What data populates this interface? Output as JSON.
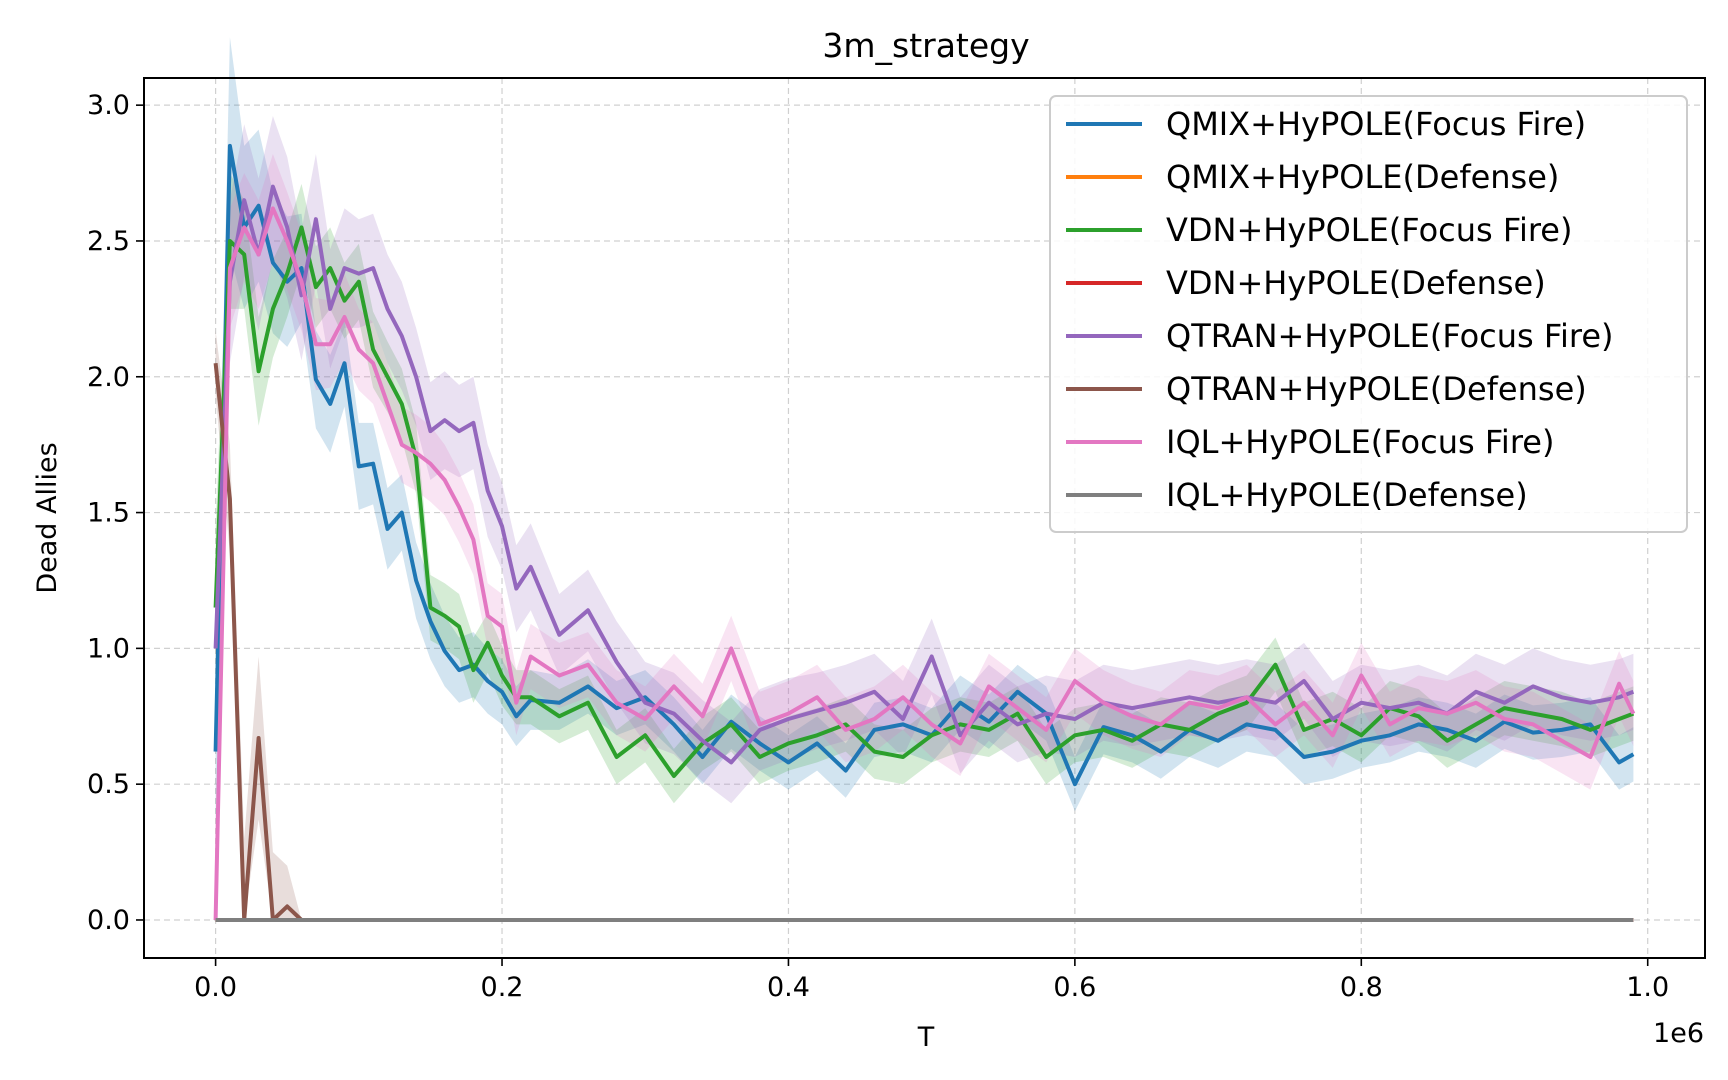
{
  "chart_data": {
    "type": "line",
    "title": "3m_strategy",
    "xlabel": "T",
    "ylabel": "Dead Allies",
    "x_offset_label": "1e6",
    "xlim": [
      -0.05,
      1.04
    ],
    "ylim": [
      -0.14,
      3.1
    ],
    "x_ticks": [
      0.0,
      0.2,
      0.4,
      0.6,
      0.8,
      1.0
    ],
    "x_tick_labels": [
      "0.0",
      "0.2",
      "0.4",
      "0.6",
      "0.8",
      "1.0"
    ],
    "y_ticks": [
      0.0,
      0.5,
      1.0,
      1.5,
      2.0,
      2.5,
      3.0
    ],
    "y_tick_labels": [
      "0.0",
      "0.5",
      "1.0",
      "1.5",
      "2.0",
      "2.5",
      "3.0"
    ],
    "grid": true,
    "legend_position": "top-right",
    "series": [
      {
        "name": "QMIX+HyPOLE(Focus Fire)",
        "color": "#1f77b4",
        "x": [
          0.0,
          0.01,
          0.02,
          0.03,
          0.04,
          0.05,
          0.06,
          0.07,
          0.08,
          0.09,
          0.1,
          0.11,
          0.12,
          0.13,
          0.14,
          0.15,
          0.16,
          0.17,
          0.18,
          0.19,
          0.2,
          0.21,
          0.22,
          0.24,
          0.26,
          0.28,
          0.3,
          0.32,
          0.34,
          0.36,
          0.38,
          0.4,
          0.42,
          0.44,
          0.46,
          0.48,
          0.5,
          0.52,
          0.54,
          0.56,
          0.58,
          0.6,
          0.62,
          0.64,
          0.66,
          0.68,
          0.7,
          0.72,
          0.74,
          0.76,
          0.78,
          0.8,
          0.82,
          0.84,
          0.86,
          0.88,
          0.9,
          0.92,
          0.94,
          0.96,
          0.98,
          0.99
        ],
        "y": [
          0.62,
          2.85,
          2.55,
          2.63,
          2.42,
          2.35,
          2.4,
          1.99,
          1.9,
          2.05,
          1.67,
          1.68,
          1.44,
          1.5,
          1.25,
          1.1,
          0.99,
          0.92,
          0.94,
          0.88,
          0.84,
          0.75,
          0.81,
          0.8,
          0.86,
          0.78,
          0.82,
          0.72,
          0.6,
          0.73,
          0.65,
          0.58,
          0.65,
          0.55,
          0.7,
          0.72,
          0.68,
          0.8,
          0.73,
          0.84,
          0.76,
          0.5,
          0.71,
          0.68,
          0.62,
          0.7,
          0.66,
          0.72,
          0.7,
          0.6,
          0.62,
          0.66,
          0.68,
          0.72,
          0.7,
          0.66,
          0.73,
          0.69,
          0.7,
          0.72,
          0.58,
          0.61
        ],
        "band": [
          0.28,
          0.4,
          0.3,
          0.28,
          0.26,
          0.24,
          0.2,
          0.18,
          0.18,
          0.16,
          0.16,
          0.15,
          0.15,
          0.14,
          0.14,
          0.14,
          0.13,
          0.12,
          0.12,
          0.12,
          0.12,
          0.11,
          0.11,
          0.1,
          0.1,
          0.1,
          0.1,
          0.1,
          0.1,
          0.1,
          0.1,
          0.1,
          0.1,
          0.1,
          0.1,
          0.1,
          0.1,
          0.1,
          0.1,
          0.1,
          0.1,
          0.1,
          0.1,
          0.1,
          0.1,
          0.1,
          0.1,
          0.1,
          0.1,
          0.1,
          0.1,
          0.1,
          0.1,
          0.1,
          0.1,
          0.1,
          0.1,
          0.1,
          0.1,
          0.1,
          0.1,
          0.1
        ]
      },
      {
        "name": "QMIX+HyPOLE(Defense)",
        "color": "#ff7f0e",
        "x": [
          0.0,
          0.99
        ],
        "y": [
          0.0,
          0.0
        ]
      },
      {
        "name": "VDN+HyPOLE(Focus Fire)",
        "color": "#2ca02c",
        "x": [
          0.0,
          0.01,
          0.02,
          0.03,
          0.04,
          0.05,
          0.06,
          0.07,
          0.08,
          0.09,
          0.1,
          0.11,
          0.12,
          0.13,
          0.14,
          0.15,
          0.16,
          0.17,
          0.18,
          0.19,
          0.2,
          0.21,
          0.22,
          0.24,
          0.26,
          0.28,
          0.3,
          0.32,
          0.34,
          0.36,
          0.38,
          0.4,
          0.42,
          0.44,
          0.46,
          0.48,
          0.5,
          0.52,
          0.54,
          0.56,
          0.58,
          0.6,
          0.62,
          0.64,
          0.66,
          0.68,
          0.7,
          0.72,
          0.74,
          0.76,
          0.78,
          0.8,
          0.82,
          0.84,
          0.86,
          0.88,
          0.9,
          0.92,
          0.94,
          0.96,
          0.98,
          0.99
        ],
        "y": [
          1.15,
          2.5,
          2.45,
          2.02,
          2.25,
          2.38,
          2.55,
          2.33,
          2.4,
          2.28,
          2.35,
          2.1,
          2.0,
          1.9,
          1.7,
          1.15,
          1.12,
          1.08,
          0.92,
          1.02,
          0.9,
          0.82,
          0.82,
          0.75,
          0.8,
          0.6,
          0.68,
          0.53,
          0.65,
          0.72,
          0.6,
          0.65,
          0.68,
          0.72,
          0.62,
          0.6,
          0.68,
          0.72,
          0.7,
          0.76,
          0.6,
          0.68,
          0.7,
          0.66,
          0.72,
          0.7,
          0.76,
          0.8,
          0.94,
          0.7,
          0.74,
          0.68,
          0.78,
          0.75,
          0.66,
          0.72,
          0.78,
          0.76,
          0.74,
          0.7,
          0.74,
          0.76
        ],
        "band": [
          0.3,
          0.25,
          0.2,
          0.2,
          0.18,
          0.16,
          0.16,
          0.15,
          0.15,
          0.14,
          0.14,
          0.14,
          0.13,
          0.13,
          0.13,
          0.12,
          0.12,
          0.12,
          0.12,
          0.11,
          0.11,
          0.1,
          0.1,
          0.1,
          0.1,
          0.1,
          0.1,
          0.1,
          0.1,
          0.1,
          0.1,
          0.1,
          0.1,
          0.1,
          0.1,
          0.1,
          0.1,
          0.1,
          0.1,
          0.1,
          0.1,
          0.1,
          0.1,
          0.1,
          0.1,
          0.1,
          0.1,
          0.1,
          0.1,
          0.1,
          0.1,
          0.1,
          0.1,
          0.1,
          0.1,
          0.1,
          0.1,
          0.1,
          0.1,
          0.1,
          0.1,
          0.1
        ]
      },
      {
        "name": "VDN+HyPOLE(Defense)",
        "color": "#d62728",
        "x": [
          0.0,
          0.99
        ],
        "y": [
          0.0,
          0.0
        ]
      },
      {
        "name": "QTRAN+HyPOLE(Focus Fire)",
        "color": "#9467bd",
        "x": [
          0.0,
          0.01,
          0.02,
          0.03,
          0.04,
          0.05,
          0.06,
          0.07,
          0.08,
          0.09,
          0.1,
          0.11,
          0.12,
          0.13,
          0.14,
          0.15,
          0.16,
          0.17,
          0.18,
          0.19,
          0.2,
          0.21,
          0.22,
          0.24,
          0.26,
          0.28,
          0.3,
          0.32,
          0.34,
          0.36,
          0.38,
          0.4,
          0.42,
          0.44,
          0.46,
          0.48,
          0.5,
          0.52,
          0.54,
          0.56,
          0.58,
          0.6,
          0.62,
          0.64,
          0.66,
          0.68,
          0.7,
          0.72,
          0.74,
          0.76,
          0.78,
          0.8,
          0.82,
          0.84,
          0.86,
          0.88,
          0.9,
          0.92,
          0.94,
          0.96,
          0.98,
          0.99
        ],
        "y": [
          1.0,
          2.35,
          2.65,
          2.45,
          2.7,
          2.55,
          2.3,
          2.58,
          2.25,
          2.4,
          2.38,
          2.4,
          2.25,
          2.15,
          2.0,
          1.8,
          1.84,
          1.8,
          1.83,
          1.58,
          1.45,
          1.22,
          1.3,
          1.05,
          1.14,
          0.95,
          0.8,
          0.76,
          0.66,
          0.58,
          0.7,
          0.74,
          0.77,
          0.8,
          0.84,
          0.74,
          0.97,
          0.68,
          0.8,
          0.72,
          0.76,
          0.74,
          0.8,
          0.78,
          0.8,
          0.82,
          0.8,
          0.82,
          0.8,
          0.88,
          0.74,
          0.8,
          0.78,
          0.8,
          0.76,
          0.84,
          0.8,
          0.86,
          0.82,
          0.8,
          0.82,
          0.84
        ],
        "band": [
          0.3,
          0.3,
          0.28,
          0.28,
          0.26,
          0.26,
          0.24,
          0.24,
          0.22,
          0.22,
          0.2,
          0.2,
          0.2,
          0.2,
          0.18,
          0.18,
          0.18,
          0.17,
          0.17,
          0.17,
          0.16,
          0.16,
          0.16,
          0.15,
          0.15,
          0.15,
          0.15,
          0.15,
          0.15,
          0.15,
          0.15,
          0.15,
          0.14,
          0.14,
          0.14,
          0.14,
          0.14,
          0.14,
          0.14,
          0.14,
          0.14,
          0.14,
          0.14,
          0.14,
          0.14,
          0.14,
          0.14,
          0.14,
          0.14,
          0.14,
          0.14,
          0.14,
          0.14,
          0.14,
          0.14,
          0.14,
          0.14,
          0.14,
          0.14,
          0.14,
          0.14,
          0.14
        ]
      },
      {
        "name": "QTRAN+HyPOLE(Defense)",
        "color": "#8c564b",
        "x": [
          0.0,
          0.01,
          0.02,
          0.03,
          0.04,
          0.05,
          0.06
        ],
        "y": [
          2.05,
          1.55,
          0.0,
          0.67,
          0.0,
          0.05,
          0.0
        ],
        "band": [
          0.12,
          0.2,
          0.3,
          0.3,
          0.25,
          0.15,
          0.0
        ]
      },
      {
        "name": "IQL+HyPOLE(Focus Fire)",
        "color": "#e377c2",
        "x": [
          0.0,
          0.01,
          0.02,
          0.03,
          0.04,
          0.05,
          0.06,
          0.07,
          0.08,
          0.09,
          0.1,
          0.11,
          0.12,
          0.13,
          0.14,
          0.15,
          0.16,
          0.17,
          0.18,
          0.19,
          0.2,
          0.21,
          0.22,
          0.24,
          0.26,
          0.28,
          0.3,
          0.32,
          0.34,
          0.36,
          0.38,
          0.4,
          0.42,
          0.44,
          0.46,
          0.48,
          0.5,
          0.52,
          0.54,
          0.56,
          0.58,
          0.6,
          0.62,
          0.64,
          0.66,
          0.68,
          0.7,
          0.72,
          0.74,
          0.76,
          0.78,
          0.8,
          0.82,
          0.84,
          0.86,
          0.88,
          0.9,
          0.92,
          0.94,
          0.96,
          0.98,
          0.99
        ],
        "y": [
          0.0,
          2.4,
          2.55,
          2.45,
          2.62,
          2.5,
          2.35,
          2.12,
          2.12,
          2.22,
          2.1,
          2.05,
          1.9,
          1.75,
          1.72,
          1.68,
          1.62,
          1.52,
          1.4,
          1.12,
          1.08,
          0.8,
          0.97,
          0.9,
          0.94,
          0.8,
          0.74,
          0.86,
          0.75,
          1.0,
          0.72,
          0.76,
          0.82,
          0.7,
          0.74,
          0.82,
          0.72,
          0.65,
          0.86,
          0.78,
          0.7,
          0.88,
          0.8,
          0.75,
          0.72,
          0.8,
          0.78,
          0.82,
          0.72,
          0.8,
          0.68,
          0.9,
          0.72,
          0.78,
          0.76,
          0.8,
          0.74,
          0.72,
          0.66,
          0.6,
          0.87,
          0.76
        ],
        "band": [
          0.05,
          0.22,
          0.2,
          0.2,
          0.2,
          0.18,
          0.18,
          0.17,
          0.16,
          0.16,
          0.15,
          0.15,
          0.15,
          0.14,
          0.14,
          0.14,
          0.13,
          0.13,
          0.13,
          0.12,
          0.12,
          0.12,
          0.12,
          0.12,
          0.12,
          0.12,
          0.12,
          0.12,
          0.12,
          0.12,
          0.12,
          0.12,
          0.12,
          0.12,
          0.12,
          0.12,
          0.12,
          0.12,
          0.12,
          0.12,
          0.12,
          0.12,
          0.12,
          0.12,
          0.12,
          0.12,
          0.12,
          0.12,
          0.12,
          0.12,
          0.12,
          0.12,
          0.12,
          0.12,
          0.12,
          0.12,
          0.12,
          0.12,
          0.12,
          0.12,
          0.12,
          0.12
        ]
      },
      {
        "name": "IQL+HyPOLE(Defense)",
        "color": "#7f7f7f",
        "x": [
          0.0,
          0.99
        ],
        "y": [
          0.0,
          0.0
        ]
      }
    ]
  }
}
